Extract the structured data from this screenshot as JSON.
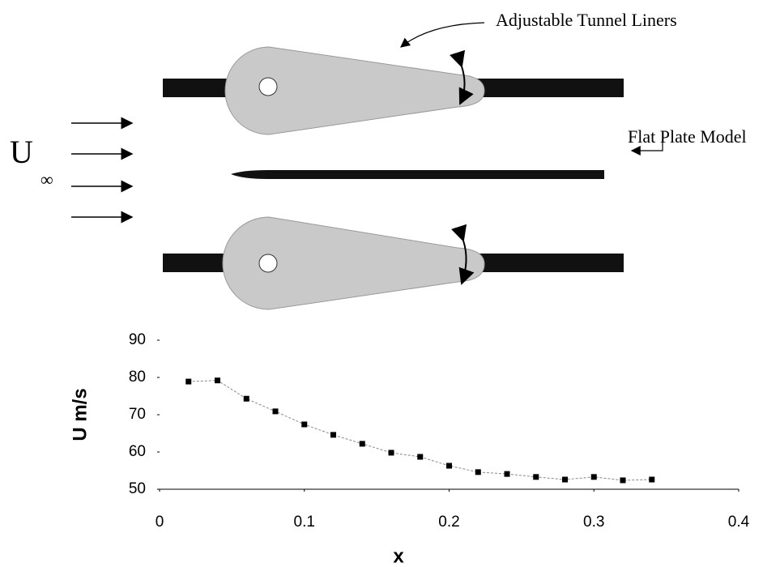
{
  "diagram": {
    "liner_label": "Adjustable Tunnel Liners",
    "plate_label": "Flat Plate Model",
    "flow_symbol": "U",
    "flow_subscript": "∞"
  },
  "chart_data": {
    "type": "line",
    "x_label": "x",
    "y_label": "U m/s",
    "x": [
      0.02,
      0.04,
      0.06,
      0.08,
      0.1,
      0.12,
      0.14,
      0.16,
      0.18,
      0.2,
      0.22,
      0.24,
      0.26,
      0.28,
      0.3,
      0.32,
      0.34
    ],
    "series": [
      {
        "color": "#000000",
        "values": [
          78.9,
          79.2,
          74.3,
          70.9,
          67.4,
          64.6,
          62.2,
          59.8,
          58.7,
          56.3,
          54.6,
          54.1,
          53.3,
          52.6,
          53.3,
          52.4,
          52.6
        ]
      }
    ],
    "xlim": [
      0,
      0.4
    ],
    "xticks": [
      0,
      0.1,
      0.2,
      0.3,
      0.4
    ],
    "ylim": [
      50,
      90
    ],
    "yticks": [
      50,
      60,
      70,
      80,
      90
    ]
  }
}
